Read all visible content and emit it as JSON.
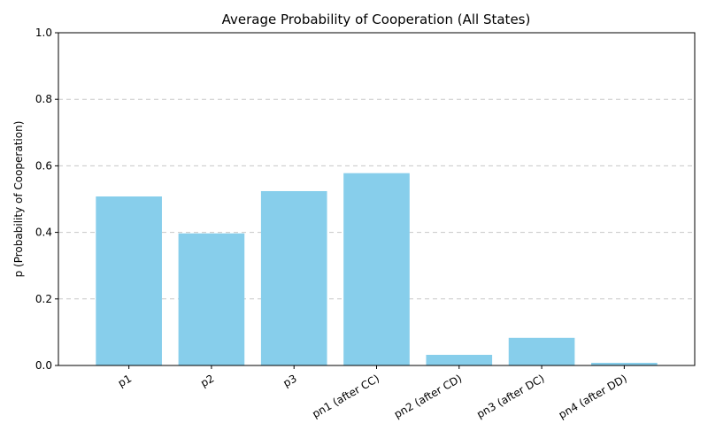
{
  "chart_data": {
    "type": "bar",
    "title": "Average Probability of Cooperation (All States)",
    "xlabel": "",
    "ylabel": "p (Probability of Cooperation)",
    "categories": [
      "p1",
      "p2",
      "p3",
      "pn1 (after CC)",
      "pn2 (after CD)",
      "pn3 (after DC)",
      "pn4 (after DD)"
    ],
    "values": [
      0.508,
      0.397,
      0.524,
      0.578,
      0.032,
      0.083,
      0.008
    ],
    "ylim": [
      0,
      1.0
    ],
    "yticks": [
      "0.0",
      "0.2",
      "0.4",
      "0.6",
      "0.8",
      "1.0"
    ],
    "grid": "y-dashed",
    "bar_color": "#87CEEB"
  }
}
